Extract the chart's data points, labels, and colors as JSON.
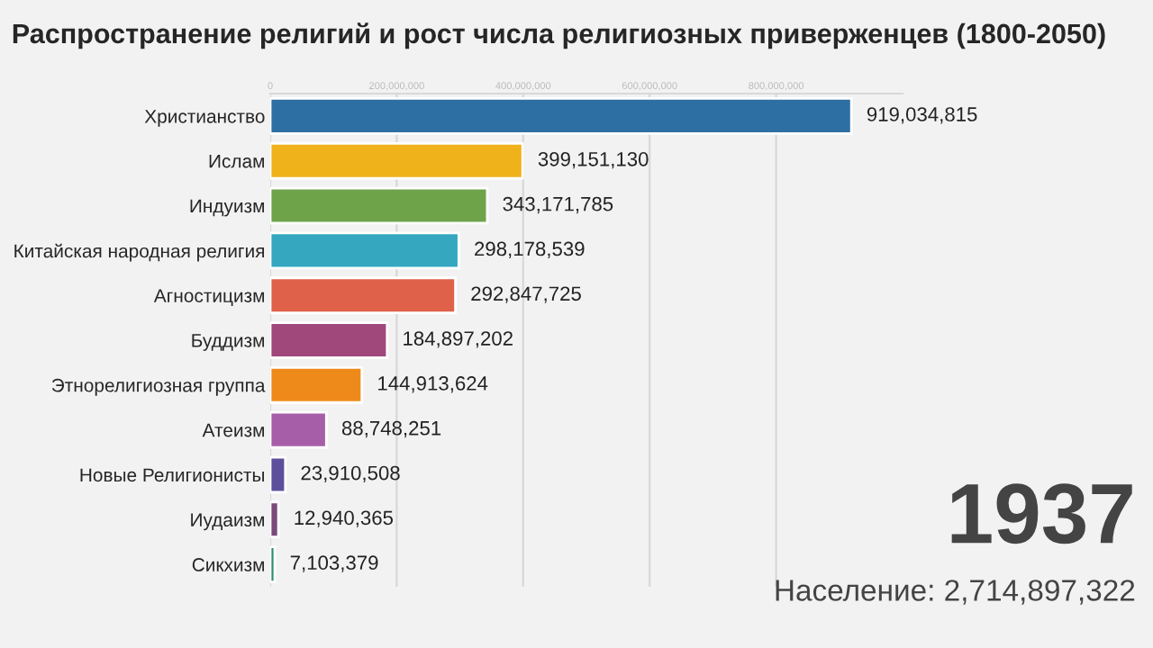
{
  "chart_data": {
    "type": "bar",
    "orientation": "horizontal",
    "title": "Распространение религий и рост числа религиозных приверженцев (1800-2050)",
    "categories": [
      "Христианство",
      "Ислам",
      "Индуизм",
      "Китайская народная религия",
      "Агностицизм",
      "Буддизм",
      "Этнорелигиозная группа",
      "Атеизм",
      "Новые Религионисты",
      "Иудаизм",
      "Сикхизм"
    ],
    "values": [
      919034815,
      399151130,
      343171785,
      298178539,
      292847725,
      184897202,
      144913624,
      88748251,
      23910508,
      12940365,
      7103379
    ],
    "value_labels": [
      "919,034,815",
      "399,151,130",
      "343,171,785",
      "298,178,539",
      "292,847,725",
      "184,897,202",
      "144,913,624",
      "88,748,251",
      "23,910,508",
      "12,940,365",
      "7,103,379"
    ],
    "colors": [
      "#2e6fa3",
      "#f0b21a",
      "#6fa34a",
      "#35a8c0",
      "#e0614a",
      "#a0477c",
      "#ee8a1a",
      "#a75ea8",
      "#5d4f9c",
      "#7a4a7a",
      "#2e8f6a"
    ],
    "xlim": [
      0,
      1000000000
    ],
    "xticks": [
      {
        "value": 0,
        "label": "0"
      },
      {
        "value": 200000000,
        "label": "200,000,000"
      },
      {
        "value": 400000000,
        "label": "400,000,000"
      },
      {
        "value": 600000000,
        "label": "600,000,000"
      },
      {
        "value": 800000000,
        "label": "800,000,000"
      }
    ],
    "grid": "x",
    "annotations": [
      "1937",
      "Население: 2,714,897,322"
    ]
  }
}
